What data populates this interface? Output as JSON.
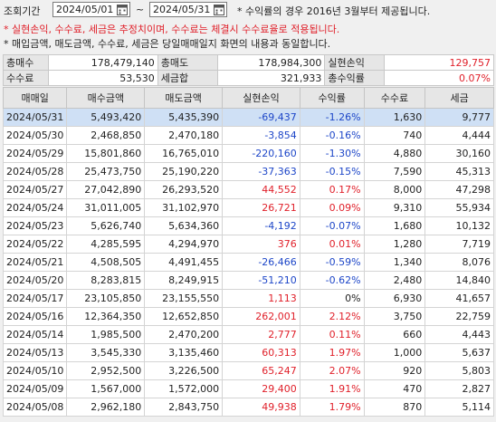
{
  "header": {
    "period_label": "조회기간",
    "start_date": "2024/05/01",
    "end_date": "2024/05/31",
    "tilde": "~",
    "note_star": "* 수익률의 경우 2016년 3월부터 제공됩니다.",
    "note_red": "* 실현손익, 수수료, 세금은 추정치이며, 수수료는 체결시 수수료율로 적용됩니다.",
    "note_gray": "* 매입금액, 매도금액, 수수료, 세금은 당일매매일지 화면의 내용과 동일합니다."
  },
  "summary": {
    "row1": [
      {
        "label": "총매수",
        "value": "178,479,140"
      },
      {
        "label": "총매도",
        "value": "178,984,300"
      },
      {
        "label": "실현손익",
        "value": "129,757",
        "tone": "pos"
      }
    ],
    "row2": [
      {
        "label": "수수료",
        "value": "53,530"
      },
      {
        "label": "세금합",
        "value": "321,933"
      },
      {
        "label": "총수익률",
        "value": "0.07%",
        "tone": "pos"
      }
    ]
  },
  "columns": [
    "매매일",
    "매수금액",
    "매도금액",
    "실현손익",
    "수익률",
    "수수료",
    "세금"
  ],
  "rows": [
    {
      "date": "2024/05/31",
      "buy": "5,493,420",
      "sell": "5,435,390",
      "pnl": "-69,437",
      "rate": "-1.26%",
      "fee": "1,630",
      "tax": "9,777",
      "tone": "neg"
    },
    {
      "date": "2024/05/30",
      "buy": "2,468,850",
      "sell": "2,470,180",
      "pnl": "-3,854",
      "rate": "-0.16%",
      "fee": "740",
      "tax": "4,444",
      "tone": "neg"
    },
    {
      "date": "2024/05/29",
      "buy": "15,801,860",
      "sell": "16,765,010",
      "pnl": "-220,160",
      "rate": "-1.30%",
      "fee": "4,880",
      "tax": "30,160",
      "tone": "neg"
    },
    {
      "date": "2024/05/28",
      "buy": "25,473,750",
      "sell": "25,190,220",
      "pnl": "-37,363",
      "rate": "-0.15%",
      "fee": "7,590",
      "tax": "45,313",
      "tone": "neg"
    },
    {
      "date": "2024/05/27",
      "buy": "27,042,890",
      "sell": "26,293,520",
      "pnl": "44,552",
      "rate": "0.17%",
      "fee": "8,000",
      "tax": "47,298",
      "tone": "pos"
    },
    {
      "date": "2024/05/24",
      "buy": "31,011,005",
      "sell": "31,102,970",
      "pnl": "26,721",
      "rate": "0.09%",
      "fee": "9,310",
      "tax": "55,934",
      "tone": "pos"
    },
    {
      "date": "2024/05/23",
      "buy": "5,626,740",
      "sell": "5,634,360",
      "pnl": "-4,192",
      "rate": "-0.07%",
      "fee": "1,680",
      "tax": "10,132",
      "tone": "neg"
    },
    {
      "date": "2024/05/22",
      "buy": "4,285,595",
      "sell": "4,294,970",
      "pnl": "376",
      "rate": "0.01%",
      "fee": "1,280",
      "tax": "7,719",
      "tone": "pos"
    },
    {
      "date": "2024/05/21",
      "buy": "4,508,505",
      "sell": "4,491,455",
      "pnl": "-26,466",
      "rate": "-0.59%",
      "fee": "1,340",
      "tax": "8,076",
      "tone": "neg"
    },
    {
      "date": "2024/05/20",
      "buy": "8,283,815",
      "sell": "8,249,915",
      "pnl": "-51,210",
      "rate": "-0.62%",
      "fee": "2,480",
      "tax": "14,840",
      "tone": "neg"
    },
    {
      "date": "2024/05/17",
      "buy": "23,105,850",
      "sell": "23,155,550",
      "pnl": "1,113",
      "rate": "0%",
      "fee": "6,930",
      "tax": "41,657",
      "tone": "pos",
      "rate_tone": "zero"
    },
    {
      "date": "2024/05/16",
      "buy": "12,364,350",
      "sell": "12,652,850",
      "pnl": "262,001",
      "rate": "2.12%",
      "fee": "3,750",
      "tax": "22,759",
      "tone": "pos"
    },
    {
      "date": "2024/05/14",
      "buy": "1,985,500",
      "sell": "2,470,200",
      "pnl": "2,777",
      "rate": "0.11%",
      "fee": "660",
      "tax": "4,443",
      "tone": "pos"
    },
    {
      "date": "2024/05/13",
      "buy": "3,545,330",
      "sell": "3,135,460",
      "pnl": "60,313",
      "rate": "1.97%",
      "fee": "1,000",
      "tax": "5,637",
      "tone": "pos"
    },
    {
      "date": "2024/05/10",
      "buy": "2,952,500",
      "sell": "3,226,500",
      "pnl": "65,247",
      "rate": "2.07%",
      "fee": "920",
      "tax": "5,803",
      "tone": "pos"
    },
    {
      "date": "2024/05/09",
      "buy": "1,567,000",
      "sell": "1,572,000",
      "pnl": "29,400",
      "rate": "1.91%",
      "fee": "470",
      "tax": "2,827",
      "tone": "pos"
    },
    {
      "date": "2024/05/08",
      "buy": "2,962,180",
      "sell": "2,843,750",
      "pnl": "49,938",
      "rate": "1.79%",
      "fee": "870",
      "tax": "5,114",
      "tone": "pos"
    }
  ],
  "selected_row": 0,
  "colors": {
    "positive": "#e0202a",
    "negative": "#1d46c8",
    "selected": "#cfe0f5"
  },
  "icons": {
    "calendar": "calendar-icon"
  }
}
